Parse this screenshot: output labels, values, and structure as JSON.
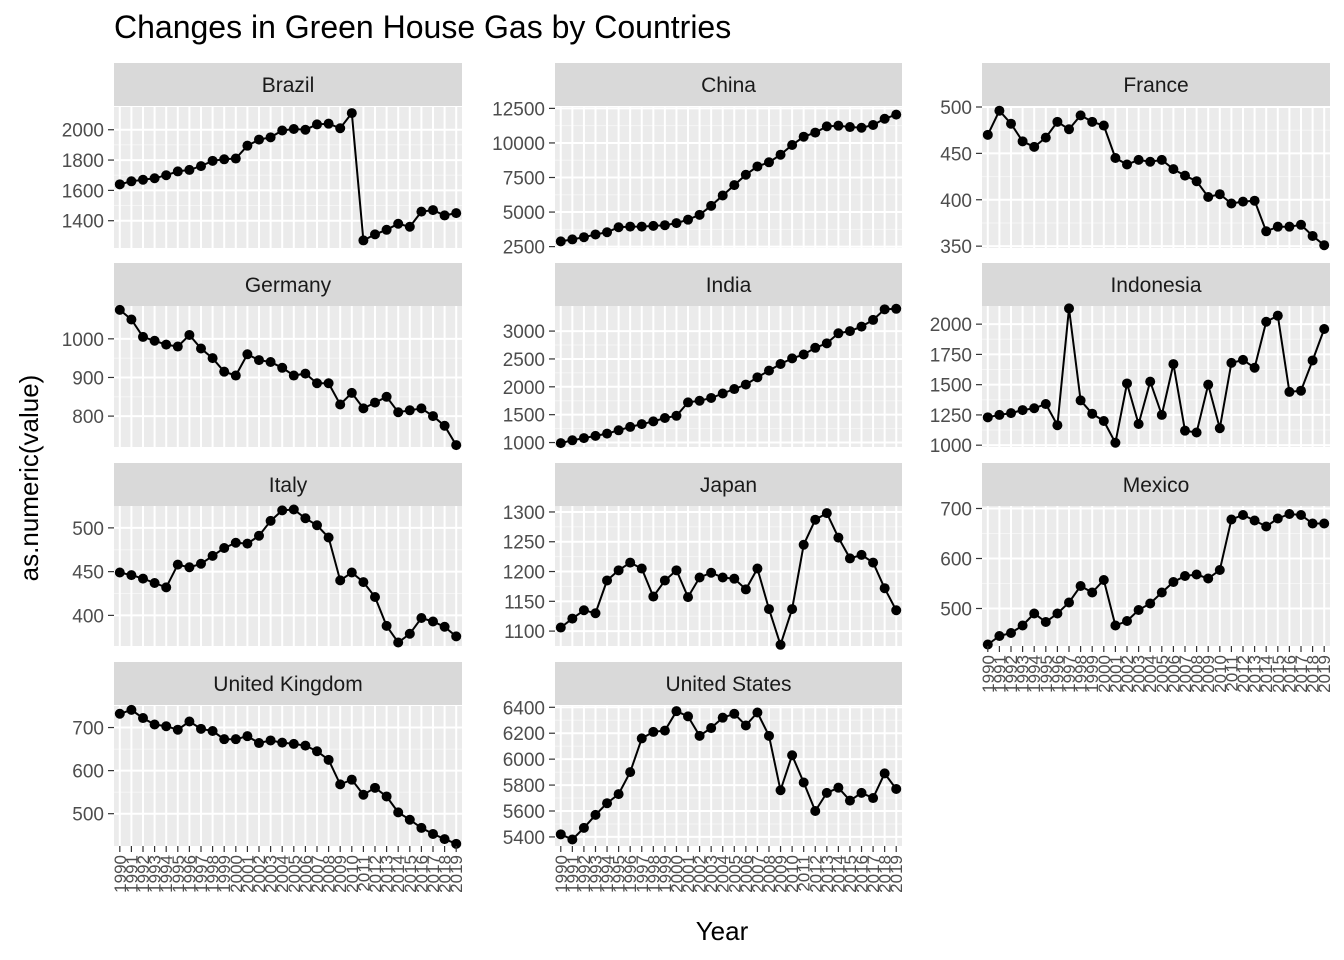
{
  "chart_data": {
    "type": "line",
    "title": "Changes in Green House Gas by Countries",
    "xlabel": "Year",
    "ylabel": "as.numeric(value)",
    "x": [
      1990,
      1991,
      1992,
      1993,
      1994,
      1995,
      1996,
      1997,
      1998,
      1999,
      2000,
      2001,
      2002,
      2003,
      2004,
      2005,
      2006,
      2007,
      2008,
      2009,
      2010,
      2011,
      2012,
      2013,
      2014,
      2015,
      2016,
      2017,
      2018,
      2019
    ],
    "x_tick_labels": [
      "1990",
      "1991",
      "1992",
      "1993",
      "1994",
      "1995",
      "1996",
      "1997",
      "1998",
      "1999",
      "2000",
      "2001",
      "2002",
      "2003",
      "2004",
      "2005",
      "2006",
      "2007",
      "2008",
      "2009",
      "2010",
      "2011",
      "2012",
      "2013",
      "2014",
      "2015",
      "2016",
      "2017",
      "2018",
      "2019"
    ],
    "facet_scales": "free_y",
    "grid": true,
    "legend": "none",
    "line_color": "#000000",
    "panel_background": "#ebebeb",
    "strip_background": "#d9d9d9",
    "panels": [
      {
        "name": "Brazil",
        "yticks": [
          1400,
          1600,
          1800,
          2000
        ],
        "ylim": [
          1220,
          2150
        ],
        "values": [
          1640,
          1660,
          1670,
          1680,
          1700,
          1725,
          1735,
          1760,
          1795,
          1805,
          1810,
          1895,
          1935,
          1950,
          1995,
          2005,
          2000,
          2035,
          2040,
          2010,
          2110,
          1270,
          1310,
          1340,
          1380,
          1360,
          1460,
          1470,
          1435,
          1450
        ]
      },
      {
        "name": "China",
        "yticks": [
          2500,
          5000,
          7500,
          10000,
          12500
        ],
        "ylim": [
          2400,
          12600
        ],
        "values": [
          2880,
          3020,
          3180,
          3380,
          3540,
          3900,
          3950,
          3950,
          4000,
          4050,
          4200,
          4450,
          4800,
          5450,
          6200,
          6950,
          7700,
          8300,
          8600,
          9150,
          9850,
          10450,
          10750,
          11200,
          11250,
          11150,
          11100,
          11300,
          11750,
          12050
        ]
      },
      {
        "name": "France",
        "yticks": [
          350,
          400,
          450,
          500
        ],
        "ylim": [
          348,
          500
        ],
        "values": [
          470,
          496,
          482,
          463,
          457,
          467,
          484,
          476,
          491,
          484,
          480,
          445,
          438,
          443,
          441,
          443,
          433,
          426,
          420,
          403,
          406,
          396,
          398,
          399,
          366,
          371,
          371,
          373,
          361,
          351
        ]
      },
      {
        "name": "Germany",
        "yticks": [
          800,
          900,
          1000
        ],
        "ylim": [
          720,
          1085
        ],
        "values": [
          1075,
          1050,
          1005,
          995,
          985,
          980,
          1010,
          975,
          950,
          915,
          905,
          960,
          945,
          940,
          925,
          905,
          910,
          885,
          885,
          830,
          860,
          820,
          835,
          850,
          810,
          815,
          820,
          800,
          775,
          725
        ]
      },
      {
        "name": "India",
        "yticks": [
          1000,
          1500,
          2000,
          2500,
          3000
        ],
        "ylim": [
          920,
          3450
        ],
        "values": [
          990,
          1040,
          1080,
          1120,
          1160,
          1220,
          1280,
          1330,
          1380,
          1440,
          1480,
          1720,
          1750,
          1800,
          1880,
          1960,
          2040,
          2170,
          2290,
          2410,
          2510,
          2580,
          2700,
          2780,
          2960,
          3000,
          3080,
          3200,
          3390,
          3400
        ]
      },
      {
        "name": "Indonesia",
        "yticks": [
          1000,
          1250,
          1500,
          1750,
          2000
        ],
        "ylim": [
          985,
          2150
        ],
        "values": [
          1230,
          1250,
          1265,
          1290,
          1305,
          1340,
          1165,
          2130,
          1370,
          1260,
          1200,
          1020,
          1510,
          1175,
          1525,
          1250,
          1670,
          1120,
          1105,
          1500,
          1140,
          1680,
          1705,
          1640,
          2020,
          2070,
          1440,
          1450,
          1700,
          1960
        ]
      },
      {
        "name": "Italy",
        "yticks": [
          400,
          450,
          500
        ],
        "ylim": [
          365,
          525
        ],
        "values": [
          449,
          446,
          442,
          437,
          432,
          458,
          455,
          459,
          468,
          477,
          483,
          482,
          491,
          508,
          520,
          521,
          511,
          503,
          489,
          440,
          449,
          438,
          421,
          388,
          369,
          379,
          397,
          393,
          387,
          376
        ]
      },
      {
        "name": "Japan",
        "yticks": [
          1100,
          1150,
          1200,
          1250,
          1300
        ],
        "ylim": [
          1075,
          1310
        ],
        "values": [
          1106,
          1121,
          1135,
          1130,
          1185,
          1202,
          1215,
          1205,
          1158,
          1185,
          1202,
          1157,
          1190,
          1198,
          1190,
          1188,
          1170,
          1205,
          1137,
          1077,
          1137,
          1245,
          1287,
          1298,
          1257,
          1222,
          1228,
          1215,
          1172,
          1135
        ]
      },
      {
        "name": "Mexico",
        "yticks": [
          500,
          600,
          700
        ],
        "ylim": [
          425,
          705
        ],
        "values": [
          428,
          445,
          451,
          466,
          490,
          473,
          490,
          512,
          545,
          532,
          557,
          466,
          475,
          497,
          510,
          532,
          553,
          565,
          568,
          560,
          577,
          678,
          687,
          676,
          664,
          680,
          689,
          687,
          670,
          670
        ]
      },
      {
        "name": "United Kingdom",
        "yticks": [
          500,
          600,
          700
        ],
        "ylim": [
          425,
          750
        ],
        "values": [
          732,
          741,
          722,
          707,
          703,
          695,
          714,
          697,
          692,
          673,
          673,
          680,
          664,
          670,
          665,
          662,
          658,
          645,
          625,
          568,
          579,
          544,
          560,
          540,
          503,
          486,
          467,
          453,
          441,
          430
        ]
      },
      {
        "name": "United States",
        "yticks": [
          5400,
          5600,
          5800,
          6000,
          6200,
          6400
        ],
        "ylim": [
          5330,
          6410
        ],
        "values": [
          5420,
          5380,
          5470,
          5570,
          5660,
          5730,
          5900,
          6160,
          6210,
          6220,
          6370,
          6330,
          6180,
          6240,
          6320,
          6350,
          6260,
          6360,
          6180,
          5760,
          6030,
          5820,
          5600,
          5740,
          5780,
          5680,
          5740,
          5700,
          5890,
          5770
        ]
      }
    ]
  }
}
